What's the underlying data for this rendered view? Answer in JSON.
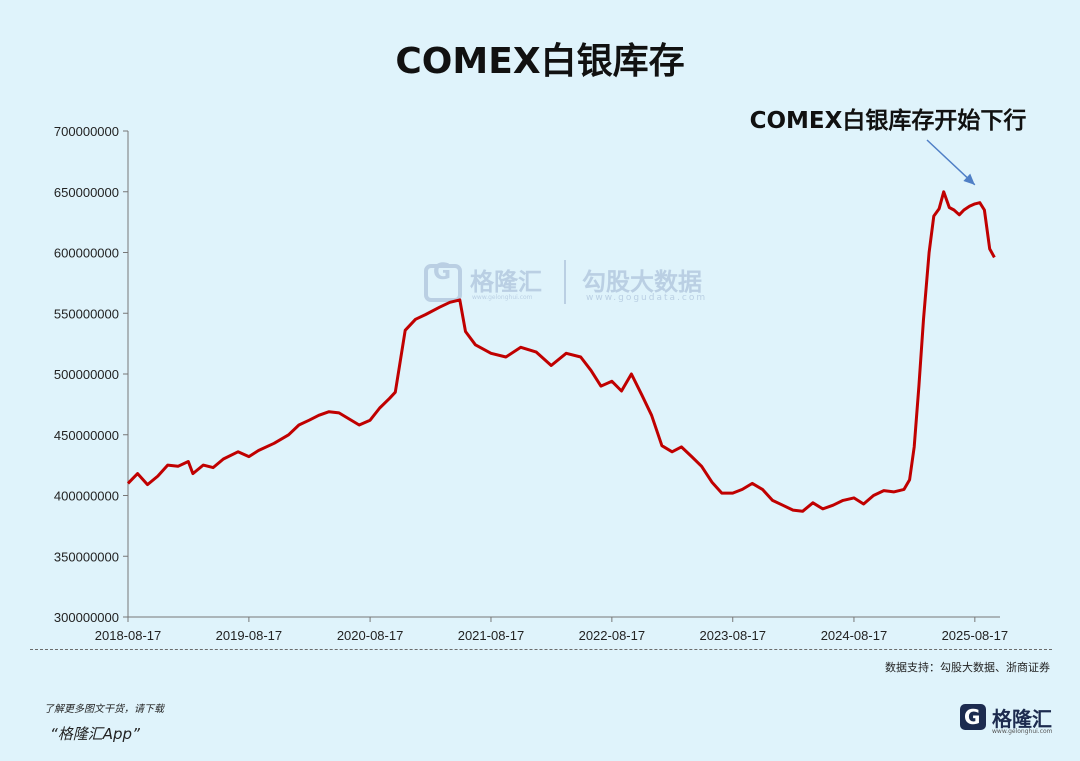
{
  "title": "COMEX白银库存",
  "chart_data": {
    "type": "line",
    "title": "COMEX白银库存",
    "xlabel": "",
    "ylabel": "",
    "x_ticks": [
      "2018-08-17",
      "2019-08-17",
      "2020-08-17",
      "2021-08-17",
      "2022-08-17",
      "2023-08-17",
      "2024-08-17",
      "2025-08-17"
    ],
    "y_ticks": [
      "700000000",
      "650000000",
      "600000000",
      "550000000",
      "500000000",
      "450000000",
      "400000000",
      "350000000",
      "300000000"
    ],
    "ylim": [
      300000000,
      700000000
    ],
    "xlim": [
      "2018-08-17",
      "2025-11-01"
    ],
    "grid": false,
    "legend": "none",
    "series": [
      {
        "color": "#c00000",
        "points": [
          [
            "2018-08-17",
            410000000
          ],
          [
            "2018-09-15",
            418000000
          ],
          [
            "2018-10-15",
            409000000
          ],
          [
            "2018-11-15",
            416000000
          ],
          [
            "2018-12-15",
            425000000
          ],
          [
            "2019-01-15",
            424000000
          ],
          [
            "2019-02-15",
            428000000
          ],
          [
            "2019-03-01",
            418000000
          ],
          [
            "2019-04-01",
            425000000
          ],
          [
            "2019-05-01",
            423000000
          ],
          [
            "2019-06-01",
            430000000
          ],
          [
            "2019-07-15",
            436000000
          ],
          [
            "2019-08-17",
            432000000
          ],
          [
            "2019-09-15",
            437000000
          ],
          [
            "2019-11-01",
            443000000
          ],
          [
            "2019-12-15",
            450000000
          ],
          [
            "2020-01-15",
            458000000
          ],
          [
            "2020-02-15",
            462000000
          ],
          [
            "2020-03-15",
            466000000
          ],
          [
            "2020-04-15",
            469000000
          ],
          [
            "2020-05-15",
            468000000
          ],
          [
            "2020-06-15",
            463000000
          ],
          [
            "2020-07-15",
            458000000
          ],
          [
            "2020-08-17",
            462000000
          ],
          [
            "2020-09-15",
            472000000
          ],
          [
            "2020-10-15",
            480000000
          ],
          [
            "2020-11-01",
            485000000
          ],
          [
            "2020-12-01",
            536000000
          ],
          [
            "2021-01-01",
            545000000
          ],
          [
            "2021-02-01",
            549000000
          ],
          [
            "2021-03-15",
            555000000
          ],
          [
            "2021-04-15",
            559000000
          ],
          [
            "2021-05-15",
            561000000
          ],
          [
            "2021-06-01",
            535000000
          ],
          [
            "2021-07-01",
            524000000
          ],
          [
            "2021-08-17",
            517000000
          ],
          [
            "2021-10-01",
            514000000
          ],
          [
            "2021-11-15",
            522000000
          ],
          [
            "2022-01-01",
            518000000
          ],
          [
            "2022-02-15",
            507000000
          ],
          [
            "2022-04-01",
            517000000
          ],
          [
            "2022-05-15",
            514000000
          ],
          [
            "2022-06-15",
            503000000
          ],
          [
            "2022-07-15",
            490000000
          ],
          [
            "2022-08-17",
            494000000
          ],
          [
            "2022-09-15",
            486000000
          ],
          [
            "2022-10-15",
            500000000
          ],
          [
            "2022-11-15",
            483000000
          ],
          [
            "2022-12-15",
            466000000
          ],
          [
            "2023-01-15",
            441000000
          ],
          [
            "2023-02-15",
            436000000
          ],
          [
            "2023-03-15",
            440000000
          ],
          [
            "2023-04-15",
            432000000
          ],
          [
            "2023-05-15",
            424000000
          ],
          [
            "2023-06-15",
            411000000
          ],
          [
            "2023-07-15",
            402000000
          ],
          [
            "2023-08-17",
            402000000
          ],
          [
            "2023-09-15",
            405000000
          ],
          [
            "2023-10-15",
            410000000
          ],
          [
            "2023-11-15",
            405000000
          ],
          [
            "2023-12-15",
            396000000
          ],
          [
            "2024-01-15",
            392000000
          ],
          [
            "2024-02-15",
            388000000
          ],
          [
            "2024-03-15",
            387000000
          ],
          [
            "2024-04-15",
            394000000
          ],
          [
            "2024-05-15",
            389000000
          ],
          [
            "2024-06-15",
            392000000
          ],
          [
            "2024-07-15",
            396000000
          ],
          [
            "2024-08-17",
            398000000
          ],
          [
            "2024-09-15",
            393000000
          ],
          [
            "2024-10-15",
            400000000
          ],
          [
            "2024-11-15",
            404000000
          ],
          [
            "2024-12-15",
            403000000
          ],
          [
            "2025-01-15",
            405000000
          ],
          [
            "2025-02-01",
            413000000
          ],
          [
            "2025-02-15",
            440000000
          ],
          [
            "2025-03-01",
            490000000
          ],
          [
            "2025-03-15",
            545000000
          ],
          [
            "2025-04-01",
            600000000
          ],
          [
            "2025-04-15",
            630000000
          ],
          [
            "2025-05-01",
            636000000
          ],
          [
            "2025-05-15",
            650000000
          ],
          [
            "2025-06-01",
            637000000
          ],
          [
            "2025-06-15",
            635000000
          ],
          [
            "2025-07-01",
            631000000
          ],
          [
            "2025-07-15",
            635000000
          ],
          [
            "2025-08-01",
            638000000
          ],
          [
            "2025-08-17",
            640000000
          ],
          [
            "2025-09-01",
            641000000
          ],
          [
            "2025-09-15",
            635000000
          ],
          [
            "2025-10-01",
            603000000
          ],
          [
            "2025-10-15",
            596000000
          ]
        ]
      }
    ],
    "annotations": [
      {
        "text": "COMEX白银库存开始下行",
        "x": "2025-08-17",
        "y": 645000000
      }
    ]
  },
  "watermark": {
    "logo_name": "格隆汇",
    "logo_url": "www.gelonghui.com",
    "name2": "勾股大数据",
    "url2": "www.gogudata.com"
  },
  "source": "数据支持：勾股大数据、浙商证券",
  "promo": {
    "line1": "了解更多图文干货，请下载",
    "line2": "“格隆汇App”"
  },
  "brand": {
    "name": "格隆汇",
    "url": "www.gelonghui.com"
  },
  "colors": {
    "background": "#dff3fb",
    "line": "#c00000",
    "arrow": "#4f7fc6"
  }
}
